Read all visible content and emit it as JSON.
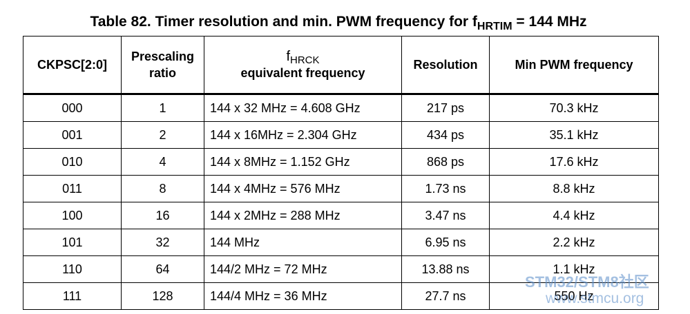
{
  "title": {
    "prefix": "Table 82. Timer resolution and min. PWM frequency for f",
    "subscript": "HRTIM",
    "suffix": " = 144 MHz"
  },
  "table": {
    "headers": [
      "CKPSC[2:0]",
      "Prescaling ratio",
      {
        "main": "f",
        "subscript": "HRCK",
        "line2": "equivalent frequency"
      },
      "Resolution",
      "Min PWM frequency"
    ],
    "rows": [
      [
        "000",
        "1",
        "144 x 32 MHz = 4.608 GHz",
        "217 ps",
        "70.3 kHz"
      ],
      [
        "001",
        "2",
        "144 x 16MHz = 2.304 GHz",
        "434 ps",
        "35.1 kHz"
      ],
      [
        "010",
        "4",
        "144 x 8MHz = 1.152 GHz",
        "868 ps",
        "17.6 kHz"
      ],
      [
        "011",
        "8",
        "144 x 4MHz = 576 MHz",
        "1.73 ns",
        "8.8 kHz"
      ],
      [
        "100",
        "16",
        "144 x 2MHz = 288 MHz",
        "3.47 ns",
        "4.4 kHz"
      ],
      [
        "101",
        "32",
        "144 MHz",
        "6.95 ns",
        "2.2 kHz"
      ],
      [
        "110",
        "64",
        "144/2 MHz = 72 MHz",
        "13.88 ns",
        "1.1 kHz"
      ],
      [
        "111",
        "128",
        "144/4 MHz = 36 MHz",
        "27.7 ns",
        "550 Hz"
      ]
    ]
  },
  "watermark": {
    "line1": "STM32/STM8社区",
    "line2": "www.stmcu.org"
  }
}
